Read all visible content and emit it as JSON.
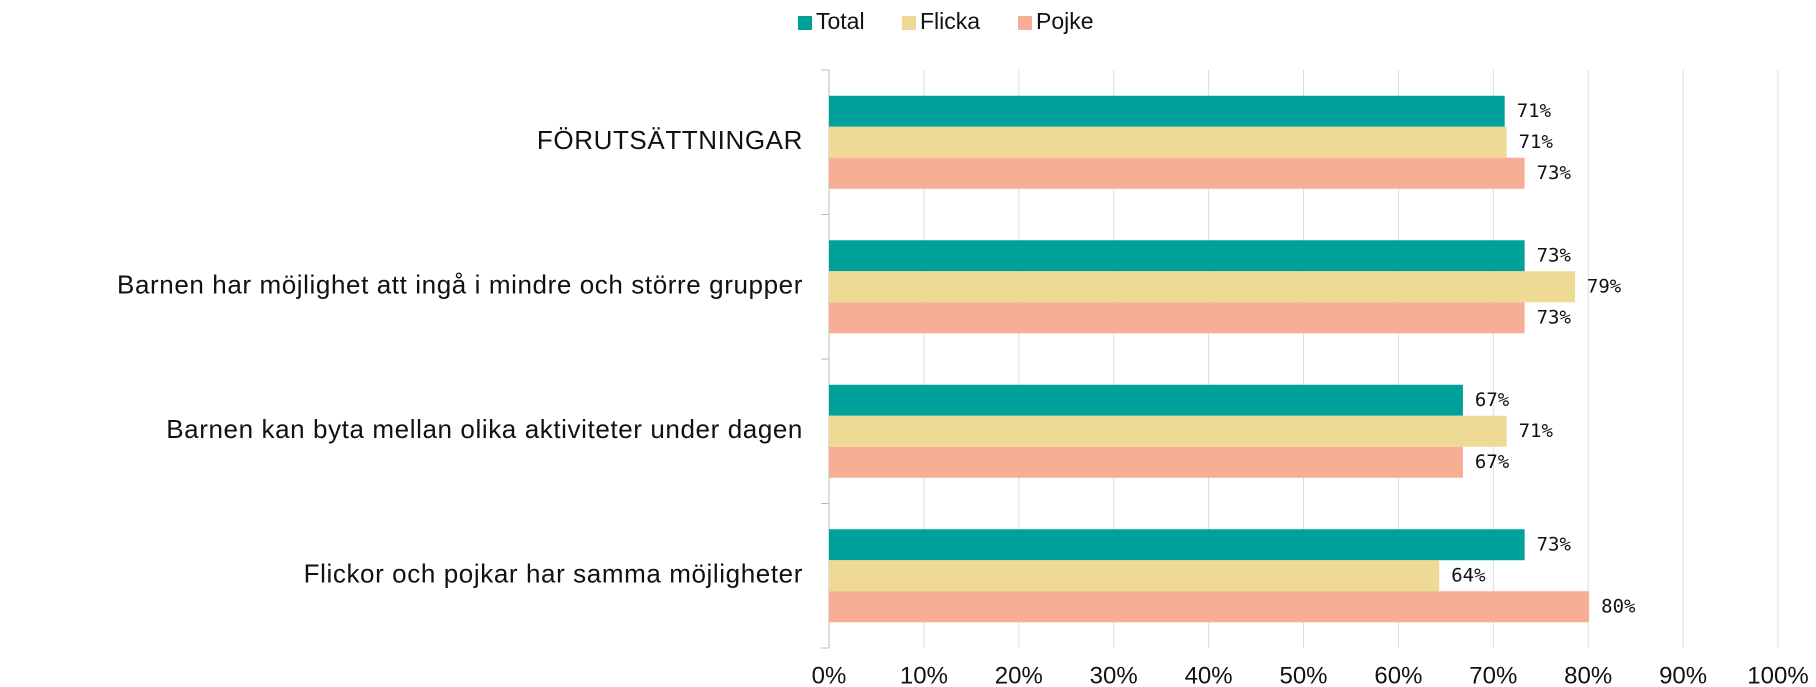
{
  "chart_data": {
    "type": "hbar",
    "categories": [
      "FÖRUTSÄTTNINGAR",
      "Barnen har möjlighet att ingå i mindre och större grupper",
      "Barnen kan byta mellan olika aktiviteter under dagen",
      "Flickor och pojkar har samma möjligheter"
    ],
    "series": [
      {
        "name": "Total",
        "color": "#00a19a",
        "values": [
          71.2,
          73.3,
          66.8,
          73.3
        ],
        "value_labels": [
          "71%",
          "73%",
          "67%",
          "73%"
        ]
      },
      {
        "name": "Flicka",
        "color": "#eed995",
        "values": [
          71.4,
          78.6,
          71.4,
          64.3
        ],
        "value_labels": [
          "71%",
          "79%",
          "71%",
          "64%"
        ]
      },
      {
        "name": "Pojke",
        "color": "#f6ae94",
        "values": [
          73.3,
          73.3,
          66.8,
          80.1
        ],
        "value_labels": [
          "73%",
          "73%",
          "67%",
          "80%"
        ]
      }
    ],
    "xlim": [
      0,
      100
    ],
    "xticks": [
      {
        "value": 0,
        "label": "0%"
      },
      {
        "value": 10,
        "label": "10%"
      },
      {
        "value": 20,
        "label": "20%"
      },
      {
        "value": 30,
        "label": "30%"
      },
      {
        "value": 40,
        "label": "40%"
      },
      {
        "value": 50,
        "label": "50%"
      },
      {
        "value": 60,
        "label": "60%"
      },
      {
        "value": 70,
        "label": "70%"
      },
      {
        "value": 80,
        "label": "80%"
      },
      {
        "value": 90,
        "label": "90%"
      },
      {
        "value": 100,
        "label": "100%"
      }
    ],
    "grid": true,
    "legend": "top"
  }
}
